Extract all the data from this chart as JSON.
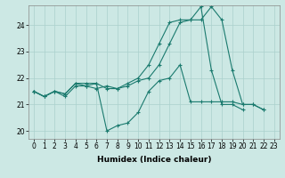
{
  "xlabel": "Humidex (Indice chaleur)",
  "bg_color": "#cce8e4",
  "grid_color": "#aad0cc",
  "line_color": "#1a7a6e",
  "xlim": [
    -0.5,
    23.5
  ],
  "ylim": [
    19.7,
    24.75
  ],
  "yticks": [
    20,
    21,
    22,
    23,
    24
  ],
  "xticks": [
    0,
    1,
    2,
    3,
    4,
    5,
    6,
    7,
    8,
    9,
    10,
    11,
    12,
    13,
    14,
    15,
    16,
    17,
    18,
    19,
    20,
    21,
    22,
    23
  ],
  "s1_x": [
    0,
    1,
    2,
    3,
    4,
    5,
    6,
    7,
    8,
    9,
    10,
    11,
    12,
    13,
    14,
    15,
    16,
    17,
    18,
    19,
    20,
    21,
    22
  ],
  "s1_y": [
    21.5,
    21.3,
    21.5,
    21.3,
    21.7,
    21.7,
    21.6,
    21.7,
    21.6,
    21.7,
    21.9,
    22.0,
    22.5,
    23.3,
    24.1,
    24.2,
    24.2,
    24.7,
    24.2,
    22.3,
    21.0,
    21.0,
    20.8
  ],
  "s2_x": [
    0,
    1,
    2,
    3,
    4,
    5,
    6,
    7,
    8,
    9,
    10,
    11,
    12,
    13,
    14,
    15,
    16,
    17,
    18,
    19,
    20,
    21,
    22
  ],
  "s2_y": [
    21.5,
    21.3,
    21.5,
    21.4,
    21.8,
    21.8,
    21.8,
    20.0,
    20.2,
    20.3,
    20.7,
    21.5,
    21.9,
    22.0,
    22.5,
    21.1,
    21.1,
    21.1,
    21.1,
    21.1,
    21.0,
    21.0,
    20.8
  ],
  "s3_x": [
    0,
    1,
    2,
    3,
    4,
    5,
    6,
    7,
    8,
    9,
    10,
    11,
    12,
    13,
    14,
    15,
    16,
    17,
    18,
    19,
    20
  ],
  "s3_y": [
    21.5,
    21.3,
    21.5,
    21.4,
    21.8,
    21.7,
    21.8,
    21.6,
    21.6,
    21.8,
    22.0,
    22.5,
    23.3,
    24.1,
    24.2,
    24.2,
    24.7,
    22.3,
    21.0,
    21.0,
    20.8
  ],
  "xlabel_fontsize": 6.5,
  "tick_fontsize": 5.5
}
